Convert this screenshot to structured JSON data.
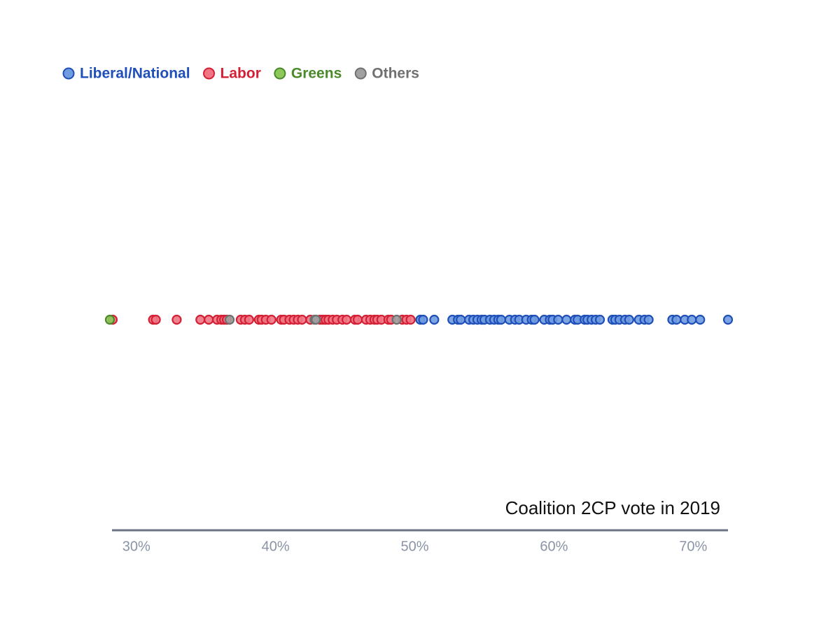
{
  "chart_data": {
    "type": "strip",
    "title": "Coalition 2CP vote in 2019",
    "xlim": [
      28,
      72.5
    ],
    "xticks": [
      {
        "value": 30,
        "label": "30%"
      },
      {
        "value": 40,
        "label": "40%"
      },
      {
        "value": 50,
        "label": "50%"
      },
      {
        "value": 60,
        "label": "60%"
      },
      {
        "value": 70,
        "label": "70%"
      }
    ],
    "series": [
      {
        "name": "Liberal/National",
        "color": "#1f4fb8",
        "fill": "#6f9be0",
        "values": [
          50.4,
          50.6,
          51.4,
          52.7,
          53.1,
          53.3,
          53.9,
          54.2,
          54.5,
          54.8,
          55.0,
          55.4,
          55.7,
          56.0,
          56.2,
          56.8,
          57.2,
          57.5,
          58.0,
          58.4,
          58.6,
          59.3,
          59.7,
          59.9,
          60.3,
          60.9,
          61.5,
          61.7,
          62.2,
          62.4,
          62.7,
          63.0,
          63.3,
          64.2,
          64.4,
          64.7,
          65.1,
          65.4,
          66.1,
          66.5,
          66.8,
          68.5,
          68.8,
          69.4,
          69.9,
          70.5,
          72.5
        ]
      },
      {
        "name": "Labor",
        "color": "#d42035",
        "fill": "#f07585",
        "values": [
          28.3,
          31.2,
          31.4,
          32.9,
          34.6,
          35.2,
          35.8,
          36.1,
          36.3,
          36.5,
          37.5,
          37.8,
          38.1,
          38.8,
          39.0,
          39.3,
          39.7,
          40.4,
          40.6,
          41.0,
          41.3,
          41.6,
          41.9,
          42.5,
          43.2,
          43.4,
          43.6,
          43.8,
          44.1,
          44.4,
          44.8,
          45.1,
          45.7,
          45.9,
          46.5,
          46.8,
          47.1,
          47.3,
          47.6,
          48.1,
          48.3,
          49.1,
          49.4,
          49.7
        ]
      },
      {
        "name": "Greens",
        "color": "#4a8a2a",
        "fill": "#8cc85a",
        "values": [
          28.1
        ]
      },
      {
        "name": "Others",
        "color": "#707070",
        "fill": "#a0a0a0",
        "values": [
          36.7,
          42.8,
          42.9,
          48.7
        ]
      }
    ]
  }
}
